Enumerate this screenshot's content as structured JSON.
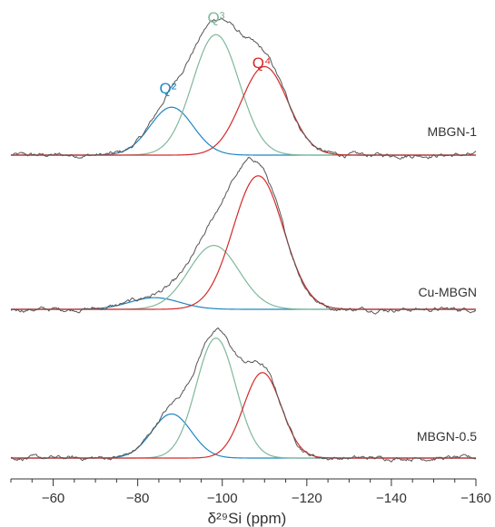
{
  "colors": {
    "measured": "#555555",
    "Q2": "#1f86c4",
    "Q3": "#7fb89a",
    "Q4": "#d42a2a",
    "axis": "#333333"
  },
  "chart_data": {
    "type": "line",
    "xlabel": "δ²⁹Si (ppm)",
    "xlim": [
      -50,
      -160
    ],
    "x_ticks": [
      -60,
      -80,
      -100,
      -120,
      -140,
      -160
    ],
    "x_tick_labels": [
      "−60",
      "−80",
      "−100",
      "−120",
      "−140",
      "−160"
    ],
    "grid": false,
    "panels": [
      {
        "name": "MBGN-1",
        "label": "MBGN-1",
        "peak_labels": [
          {
            "text": "Q²",
            "component": "Q2"
          },
          {
            "text": "Q³",
            "component": "Q3"
          },
          {
            "text": "Q⁴",
            "component": "Q4"
          }
        ],
        "components": [
          {
            "id": "Q2",
            "center": -88,
            "height": 0.33,
            "fwhm": 12
          },
          {
            "id": "Q3",
            "center": -98.5,
            "height": 0.83,
            "fwhm": 13
          },
          {
            "id": "Q4",
            "center": -110,
            "height": 0.61,
            "fwhm": 13
          }
        ]
      },
      {
        "name": "Cu-MBGN",
        "label": "Cu-MBGN",
        "components": [
          {
            "id": "Q2",
            "center": -84,
            "height": 0.08,
            "fwhm": 14
          },
          {
            "id": "Q3",
            "center": -98,
            "height": 0.44,
            "fwhm": 14
          },
          {
            "id": "Q4",
            "center": -108.5,
            "height": 0.92,
            "fwhm": 14
          }
        ]
      },
      {
        "name": "MBGN-0.5",
        "label": "MBGN-0.5",
        "components": [
          {
            "id": "Q2",
            "center": -88,
            "height": 0.32,
            "fwhm": 11
          },
          {
            "id": "Q3",
            "center": -98.5,
            "height": 0.87,
            "fwhm": 11
          },
          {
            "id": "Q4",
            "center": -109.5,
            "height": 0.62,
            "fwhm": 10.5
          }
        ]
      }
    ]
  }
}
